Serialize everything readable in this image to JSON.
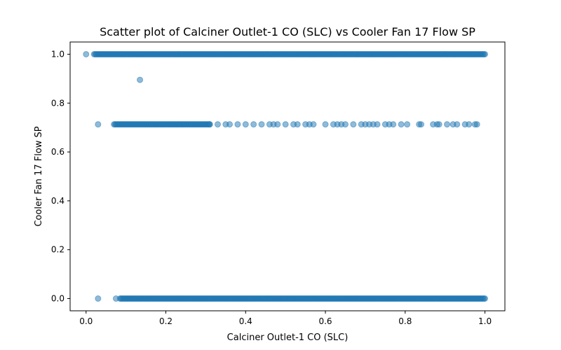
{
  "chart_data": {
    "type": "scatter",
    "title": "Scatter plot of Calciner Outlet-1 CO (SLC) vs Cooler Fan 17 Flow SP",
    "xlabel": "Calciner Outlet-1 CO (SLC)",
    "ylabel": "Cooler Fan 17 Flow SP",
    "xlim": [
      -0.04,
      1.05
    ],
    "ylim": [
      -0.05,
      1.05
    ],
    "xticks": [
      0.0,
      0.2,
      0.4,
      0.6,
      0.8,
      1.0
    ],
    "xtick_labels": [
      "0.0",
      "0.2",
      "0.4",
      "0.6",
      "0.8",
      "1.0"
    ],
    "yticks": [
      0.0,
      0.2,
      0.4,
      0.6,
      0.8,
      1.0
    ],
    "ytick_labels": [
      "0.0",
      "0.2",
      "0.4",
      "0.6",
      "0.8",
      "1.0"
    ],
    "grid": false,
    "marker_color": "#1f77b4",
    "marker_alpha": 0.5,
    "series": [
      {
        "dense_ranges": [
          {
            "y": 1.0,
            "x_from": 0.02,
            "x_to": 1.0
          },
          {
            "y": 0.713,
            "x_from": 0.07,
            "x_to": 0.31
          },
          {
            "y": 0.0,
            "x_from": 0.085,
            "x_to": 1.0
          }
        ],
        "points": [
          [
            0.0,
            1.0
          ],
          [
            0.135,
            0.895
          ],
          [
            0.03,
            0.713
          ],
          [
            0.31,
            0.713
          ],
          [
            0.33,
            0.713
          ],
          [
            0.35,
            0.713
          ],
          [
            0.36,
            0.713
          ],
          [
            0.38,
            0.713
          ],
          [
            0.4,
            0.713
          ],
          [
            0.42,
            0.713
          ],
          [
            0.44,
            0.713
          ],
          [
            0.46,
            0.713
          ],
          [
            0.47,
            0.713
          ],
          [
            0.48,
            0.713
          ],
          [
            0.5,
            0.713
          ],
          [
            0.52,
            0.713
          ],
          [
            0.53,
            0.713
          ],
          [
            0.55,
            0.713
          ],
          [
            0.56,
            0.713
          ],
          [
            0.57,
            0.713
          ],
          [
            0.6,
            0.713
          ],
          [
            0.62,
            0.713
          ],
          [
            0.63,
            0.713
          ],
          [
            0.64,
            0.713
          ],
          [
            0.65,
            0.713
          ],
          [
            0.67,
            0.713
          ],
          [
            0.69,
            0.713
          ],
          [
            0.7,
            0.713
          ],
          [
            0.71,
            0.713
          ],
          [
            0.72,
            0.713
          ],
          [
            0.73,
            0.713
          ],
          [
            0.75,
            0.713
          ],
          [
            0.76,
            0.713
          ],
          [
            0.77,
            0.713
          ],
          [
            0.79,
            0.713
          ],
          [
            0.805,
            0.713
          ],
          [
            0.835,
            0.713
          ],
          [
            0.84,
            0.713
          ],
          [
            0.87,
            0.713
          ],
          [
            0.88,
            0.713
          ],
          [
            0.885,
            0.713
          ],
          [
            0.905,
            0.713
          ],
          [
            0.92,
            0.713
          ],
          [
            0.93,
            0.713
          ],
          [
            0.95,
            0.713
          ],
          [
            0.96,
            0.713
          ],
          [
            0.975,
            0.713
          ],
          [
            0.98,
            0.713
          ],
          [
            0.03,
            0.0
          ],
          [
            0.075,
            0.0
          ]
        ]
      }
    ]
  }
}
